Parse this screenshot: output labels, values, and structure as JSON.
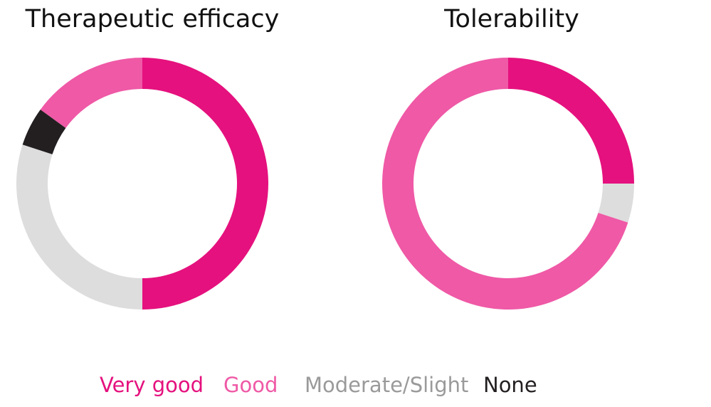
{
  "chart_data": [
    {
      "type": "donut",
      "title": "Therapeutic efficacy",
      "categories": [
        "Very good",
        "Good",
        "Moderate/Slight",
        "None"
      ],
      "values": [
        50,
        15,
        30,
        5
      ],
      "colors": [
        "#e5117e",
        "#ef59a6",
        "#dddddd",
        "#231f20"
      ],
      "order": [
        0,
        2,
        3,
        1
      ]
    },
    {
      "type": "donut",
      "title": "Tolerability",
      "categories": [
        "Very good",
        "Good",
        "Moderate/Slight",
        "None"
      ],
      "values": [
        25,
        70,
        5,
        0
      ],
      "colors": [
        "#e5117e",
        "#ef59a6",
        "#dddddd",
        "#231f20"
      ],
      "order": [
        0,
        2,
        3,
        1
      ]
    }
  ]
}
